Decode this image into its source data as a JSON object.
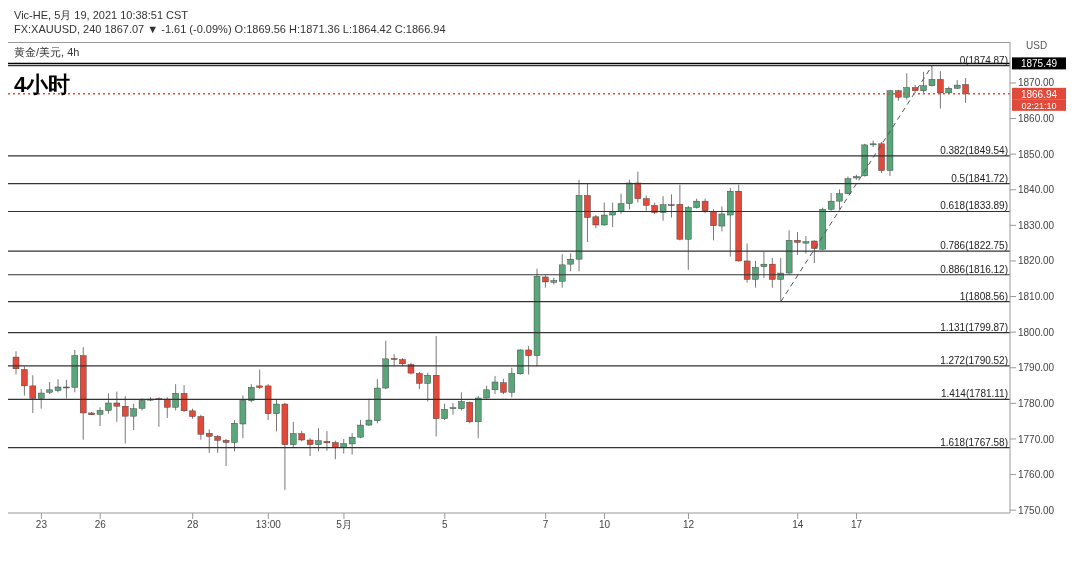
{
  "chart_data": {
    "type": "candlestick",
    "title": "4小时",
    "subtitle": "FX:XAUUSD, 240 1867.07 ▼ -1.61 (-0.09%) O:1869.56 H:1871.36 L:1864.42 C:1866.94",
    "ylabel": "USD",
    "annotations": [
      "Vic-HE, 5月 19, 2021 10:38:51 CST",
      "黄金/美元, 4h",
      "02:21:10"
    ],
    "categories": [
      null,
      null,
      null,
      "23",
      null,
      null,
      null,
      null,
      null,
      null,
      "26",
      null,
      null,
      null,
      null,
      null,
      null,
      null,
      null,
      null,
      null,
      "28",
      null,
      null,
      null,
      null,
      null,
      null,
      null,
      null,
      "13:00",
      null,
      null,
      null,
      null,
      null,
      null,
      null,
      null,
      "5月",
      null,
      null,
      null,
      null,
      null,
      null,
      null,
      null,
      null,
      null,
      null,
      "5",
      null,
      null,
      null,
      null,
      null,
      null,
      null,
      null,
      null,
      null,
      null,
      "7",
      null,
      null,
      null,
      null,
      null,
      null,
      "10",
      null,
      null,
      null,
      null,
      null,
      null,
      null,
      null,
      null,
      "12",
      null,
      null,
      null,
      null,
      null,
      null,
      null,
      null,
      null,
      null,
      null,
      null,
      "14",
      null,
      null,
      null,
      null,
      null,
      null,
      "17",
      null,
      null,
      null,
      null,
      null,
      null,
      null,
      null,
      null,
      null,
      null,
      null,
      null
    ],
    "ohlc": [
      [
        1793.0,
        1794.6,
        1788.1,
        1789.7
      ],
      [
        1789.5,
        1790.4,
        1782.2,
        1784.9
      ],
      [
        1784.9,
        1787.9,
        1777.3,
        1781.4
      ],
      [
        1781.4,
        1784.0,
        1778.5,
        1782.9
      ],
      [
        1783.1,
        1786.0,
        1782.6,
        1783.8
      ],
      [
        1783.6,
        1786.8,
        1783.1,
        1784.6
      ],
      [
        1784.6,
        1786.6,
        1781.4,
        1784.4
      ],
      [
        1784.5,
        1795.0,
        1783.1,
        1793.4
      ],
      [
        1793.4,
        1795.8,
        1769.8,
        1777.3
      ],
      [
        1777.3,
        1777.6,
        1776.7,
        1776.8
      ],
      [
        1776.9,
        1778.9,
        1773.6,
        1778.0
      ],
      [
        1778.0,
        1782.8,
        1777.1,
        1780.1
      ],
      [
        1780.1,
        1783.3,
        1774.8,
        1779.2
      ],
      [
        1779.2,
        1782.0,
        1768.7,
        1776.4
      ],
      [
        1776.4,
        1779.9,
        1772.5,
        1778.5
      ],
      [
        1778.6,
        1781.4,
        1778.0,
        1780.8
      ],
      [
        1780.9,
        1781.7,
        1780.6,
        1781.2
      ],
      [
        1781.3,
        1781.7,
        1773.4,
        1781.1
      ],
      [
        1781.2,
        1781.7,
        1775.9,
        1778.9
      ],
      [
        1778.9,
        1785.4,
        1778.0,
        1782.8
      ],
      [
        1782.8,
        1785.1,
        1777.6,
        1777.9
      ],
      [
        1777.9,
        1778.5,
        1775.7,
        1776.3
      ],
      [
        1776.3,
        1776.8,
        1769.8,
        1771.3
      ],
      [
        1771.6,
        1772.7,
        1766.1,
        1770.7
      ],
      [
        1770.7,
        1771.1,
        1766.1,
        1769.6
      ],
      [
        1769.6,
        1770.0,
        1762.4,
        1769.0
      ],
      [
        1769.0,
        1775.3,
        1766.5,
        1774.4
      ],
      [
        1774.2,
        1782.2,
        1770.2,
        1780.8
      ],
      [
        1780.8,
        1785.4,
        1780.3,
        1784.5
      ],
      [
        1784.9,
        1789.5,
        1784.0,
        1784.5
      ],
      [
        1784.9,
        1785.4,
        1775.3,
        1777.1
      ],
      [
        1777.1,
        1781.2,
        1772.1,
        1779.8
      ],
      [
        1779.8,
        1780.1,
        1755.7,
        1768.4
      ],
      [
        1768.4,
        1774.8,
        1767.5,
        1771.5
      ],
      [
        1771.5,
        1772.2,
        1769.3,
        1769.7
      ],
      [
        1769.7,
        1770.2,
        1765.2,
        1768.4
      ],
      [
        1768.4,
        1773.0,
        1766.5,
        1769.5
      ],
      [
        1769.3,
        1772.2,
        1766.7,
        1768.9
      ],
      [
        1769.0,
        1769.5,
        1764.3,
        1767.6
      ],
      [
        1767.7,
        1770.0,
        1765.9,
        1768.7
      ],
      [
        1768.6,
        1771.6,
        1765.6,
        1770.5
      ],
      [
        1770.5,
        1775.3,
        1770.2,
        1773.9
      ],
      [
        1773.9,
        1781.3,
        1773.7,
        1775.3
      ],
      [
        1775.1,
        1786.8,
        1774.4,
        1784.3
      ],
      [
        1784.3,
        1797.6,
        1784.0,
        1792.5
      ],
      [
        1792.6,
        1793.8,
        1790.4,
        1792.4
      ],
      [
        1792.3,
        1792.7,
        1790.4,
        1791.1
      ],
      [
        1790.9,
        1791.4,
        1788.1,
        1788.5
      ],
      [
        1788.4,
        1788.8,
        1784.0,
        1785.6
      ],
      [
        1785.6,
        1788.6,
        1780.5,
        1787.9
      ],
      [
        1787.9,
        1798.9,
        1770.7,
        1775.7
      ],
      [
        1775.7,
        1779.9,
        1775.3,
        1778.3
      ],
      [
        1778.5,
        1780.1,
        1776.8,
        1778.8
      ],
      [
        1778.5,
        1783.1,
        1778.0,
        1780.5
      ],
      [
        1780.3,
        1780.5,
        1774.4,
        1774.8
      ],
      [
        1774.8,
        1782.1,
        1770.2,
        1781.5
      ],
      [
        1781.5,
        1784.9,
        1781.3,
        1783.8
      ],
      [
        1783.8,
        1787.7,
        1782.6,
        1786.0
      ],
      [
        1785.8,
        1786.9,
        1782.6,
        1783.1
      ],
      [
        1783.1,
        1790.0,
        1781.7,
        1788.4
      ],
      [
        1788.3,
        1795.2,
        1788.0,
        1795.0
      ],
      [
        1795.0,
        1796.1,
        1788.1,
        1793.4
      ],
      [
        1793.4,
        1817.8,
        1790.4,
        1815.7
      ],
      [
        1815.5,
        1816.0,
        1812.5,
        1814.1
      ],
      [
        1814.0,
        1815.3,
        1813.4,
        1814.5
      ],
      [
        1814.3,
        1821.9,
        1812.5,
        1818.9
      ],
      [
        1819.1,
        1822.1,
        1817.1,
        1820.5
      ],
      [
        1820.5,
        1842.8,
        1817.1,
        1838.4
      ],
      [
        1838.4,
        1841.9,
        1825.3,
        1832.2
      ],
      [
        1832.4,
        1832.9,
        1829.2,
        1830.1
      ],
      [
        1830.1,
        1836.4,
        1829.9,
        1832.9
      ],
      [
        1832.9,
        1836.4,
        1829.5,
        1833.8
      ],
      [
        1833.8,
        1838.9,
        1833.2,
        1836.1
      ],
      [
        1836.1,
        1842.8,
        1834.5,
        1841.9
      ],
      [
        1841.9,
        1845.1,
        1836.4,
        1837.5
      ],
      [
        1837.5,
        1838.4,
        1834.1,
        1835.6
      ],
      [
        1835.6,
        1836.4,
        1833.2,
        1833.6
      ],
      [
        1833.6,
        1838.2,
        1831.3,
        1835.8
      ],
      [
        1835.8,
        1838.7,
        1832.2,
        1835.6
      ],
      [
        1835.9,
        1841.4,
        1825.8,
        1826.1
      ],
      [
        1826.1,
        1835.5,
        1817.5,
        1835.0
      ],
      [
        1835.0,
        1837.5,
        1834.7,
        1836.8
      ],
      [
        1836.8,
        1837.5,
        1833.4,
        1834.1
      ],
      [
        1833.8,
        1834.5,
        1825.8,
        1829.9
      ],
      [
        1829.8,
        1835.3,
        1828.3,
        1833.2
      ],
      [
        1832.9,
        1840.5,
        1821.2,
        1839.6
      ],
      [
        1839.6,
        1841.4,
        1819.8,
        1820.0
      ],
      [
        1820.0,
        1824.9,
        1813.9,
        1814.8
      ],
      [
        1814.8,
        1820.0,
        1812.5,
        1818.2
      ],
      [
        1818.4,
        1822.6,
        1815.2,
        1819.1
      ],
      [
        1819.1,
        1820.8,
        1812.5,
        1814.8
      ],
      [
        1814.8,
        1820.8,
        1808.56,
        1816.6
      ],
      [
        1816.6,
        1828.6,
        1816.2,
        1825.8
      ],
      [
        1825.8,
        1828.1,
        1821.7,
        1825.2
      ],
      [
        1825.0,
        1827.0,
        1822.1,
        1825.4
      ],
      [
        1825.6,
        1825.8,
        1819.4,
        1823.5
      ],
      [
        1823.3,
        1835.0,
        1823.0,
        1834.5
      ],
      [
        1834.5,
        1839.1,
        1834.1,
        1836.8
      ],
      [
        1836.8,
        1840.1,
        1834.5,
        1838.9
      ],
      [
        1838.9,
        1843.7,
        1838.7,
        1843.1
      ],
      [
        1843.3,
        1844.2,
        1842.8,
        1843.7
      ],
      [
        1843.9,
        1852.9,
        1843.7,
        1852.6
      ],
      [
        1852.6,
        1853.8,
        1852.0,
        1852.9
      ],
      [
        1852.9,
        1853.4,
        1844.7,
        1845.4
      ],
      [
        1845.4,
        1868.1,
        1843.9,
        1867.8
      ],
      [
        1867.8,
        1868.1,
        1865.0,
        1866.0
      ],
      [
        1866.0,
        1872.7,
        1865.3,
        1868.7
      ],
      [
        1868.7,
        1869.4,
        1867.2,
        1867.8
      ],
      [
        1867.8,
        1873.1,
        1867.2,
        1869.2
      ],
      [
        1869.2,
        1874.87,
        1869.0,
        1871.0
      ],
      [
        1871.0,
        1873.3,
        1862.8,
        1867.2
      ],
      [
        1867.2,
        1869.0,
        1866.9,
        1868.5
      ],
      [
        1868.5,
        1870.8,
        1868.3,
        1869.4
      ],
      [
        1869.56,
        1871.36,
        1864.42,
        1866.94
      ]
    ],
    "colors": [
      "#e04a3b",
      "#e04a3b",
      "#e04a3b",
      "#5ba57b",
      "#5ba57b",
      "#5ba57b",
      "#e04a3b",
      "#5ba57b",
      "#e04a3b",
      "#e04a3b",
      "#5ba57b",
      "#5ba57b",
      "#e04a3b",
      "#e04a3b",
      "#5ba57b",
      "#5ba57b",
      "#5ba57b",
      "#e04a3b",
      "#e04a3b",
      "#5ba57b",
      "#e04a3b",
      "#e04a3b",
      "#e04a3b",
      "#e04a3b",
      "#e04a3b",
      "#e04a3b",
      "#5ba57b",
      "#5ba57b",
      "#5ba57b",
      "#e04a3b",
      "#e04a3b",
      "#5ba57b",
      "#e04a3b",
      "#5ba57b",
      "#e04a3b",
      "#e04a3b",
      "#5ba57b",
      "#e04a3b",
      "#e04a3b",
      "#5ba57b",
      "#5ba57b",
      "#5ba57b",
      "#5ba57b",
      "#5ba57b",
      "#5ba57b",
      "#e04a3b",
      "#e04a3b",
      "#e04a3b",
      "#e04a3b",
      "#5ba57b",
      "#e04a3b",
      "#5ba57b",
      "#5ba57b",
      "#5ba57b",
      "#e04a3b",
      "#5ba57b",
      "#5ba57b",
      "#5ba57b",
      "#e04a3b",
      "#5ba57b",
      "#5ba57b",
      "#e04a3b",
      "#5ba57b",
      "#e04a3b",
      "#5ba57b",
      "#5ba57b",
      "#5ba57b",
      "#5ba57b",
      "#e04a3b",
      "#e04a3b",
      "#5ba57b",
      "#5ba57b",
      "#5ba57b",
      "#5ba57b",
      "#e04a3b",
      "#e04a3b",
      "#e04a3b",
      "#5ba57b",
      "#e04a3b",
      "#e04a3b",
      "#5ba57b",
      "#5ba57b",
      "#e04a3b",
      "#e04a3b",
      "#5ba57b",
      "#5ba57b",
      "#e04a3b",
      "#e04a3b",
      "#5ba57b",
      "#5ba57b",
      "#e04a3b",
      "#5ba57b",
      "#5ba57b",
      "#e04a3b",
      "#5ba57b",
      "#e04a3b",
      "#5ba57b",
      "#5ba57b",
      "#5ba57b",
      "#5ba57b",
      "#5ba57b",
      "#5ba57b",
      "#5ba57b",
      "#e04a3b",
      "#5ba57b",
      "#e04a3b",
      "#5ba57b",
      "#e04a3b",
      "#5ba57b",
      "#5ba57b",
      "#e04a3b",
      "#5ba57b",
      "#5ba57b",
      "#e04a3b"
    ],
    "series": [
      {
        "type": "line",
        "color": "#555555",
        "line_style": "dashed",
        "values": [
          null,
          null,
          null,
          null,
          null,
          null,
          null,
          null,
          null,
          null,
          null,
          null,
          null,
          null,
          null,
          null,
          null,
          null,
          null,
          null,
          null,
          null,
          null,
          null,
          null,
          null,
          null,
          null,
          null,
          null,
          null,
          null,
          null,
          null,
          null,
          null,
          null,
          null,
          null,
          null,
          null,
          null,
          null,
          null,
          null,
          null,
          null,
          null,
          null,
          null,
          null,
          null,
          null,
          null,
          null,
          null,
          null,
          null,
          null,
          null,
          null,
          null,
          null,
          null,
          null,
          null,
          null,
          null,
          null,
          null,
          null,
          null,
          null,
          null,
          null,
          null,
          null,
          null,
          null,
          null,
          null,
          null,
          null,
          null,
          null,
          null,
          null,
          null,
          null,
          null,
          null,
          1808.6,
          null,
          null,
          null,
          null,
          null,
          null,
          null,
          null,
          null,
          null,
          null,
          null,
          null,
          null,
          null,
          null,
          null,
          1874.9,
          null,
          null,
          null,
          null
        ]
      }
    ],
    "ylim": [
      1749.2,
      1881.5
    ],
    "yticks": [
      {
        "value": 1750,
        "label": "1750.00"
      },
      {
        "value": 1760,
        "label": "1760.00"
      },
      {
        "value": 1770,
        "label": "1770.00"
      },
      {
        "value": 1780,
        "label": "1780.00"
      },
      {
        "value": 1790,
        "label": "1790.00"
      },
      {
        "value": 1800,
        "label": "1800.00"
      },
      {
        "value": 1810,
        "label": "1810.00"
      },
      {
        "value": 1820,
        "label": "1820.00"
      },
      {
        "value": 1830,
        "label": "1830.00"
      },
      {
        "value": 1840,
        "label": "1840.00"
      },
      {
        "value": 1850,
        "label": "1850.00"
      },
      {
        "value": 1860,
        "label": "1860.00"
      },
      {
        "value": 1870,
        "label": "1870.00"
      }
    ],
    "ref_lines": [
      {
        "axis": "y",
        "value": 1875.49,
        "label": "1875.49",
        "color": "#000000"
      },
      {
        "axis": "y",
        "value": 1866.94,
        "label": "1866.94",
        "color": "#e04a3b",
        "line_style": "dotted"
      },
      {
        "axis": "y",
        "value": 1874.87,
        "label": "0(1874.87)"
      },
      {
        "axis": "y",
        "value": 1849.54,
        "label": "0.382(1849.54)"
      },
      {
        "axis": "y",
        "value": 1841.72,
        "label": "0.5(1841.72)"
      },
      {
        "axis": "y",
        "value": 1833.89,
        "label": "0.618(1833.89)"
      },
      {
        "axis": "y",
        "value": 1822.75,
        "label": "0.786(1822.75)"
      },
      {
        "axis": "y",
        "value": 1816.12,
        "label": "0.886(1816.12)"
      },
      {
        "axis": "y",
        "value": 1808.56,
        "label": "1(1808.56)"
      },
      {
        "axis": "y",
        "value": 1799.87,
        "label": "1.131(1799.87)"
      },
      {
        "axis": "y",
        "value": 1790.52,
        "label": "1.272(1790.52)"
      },
      {
        "axis": "y",
        "value": 1781.11,
        "label": "1.414(1781.11)"
      },
      {
        "axis": "y",
        "value": 1767.58,
        "label": "1.618(1767.58)"
      }
    ]
  }
}
